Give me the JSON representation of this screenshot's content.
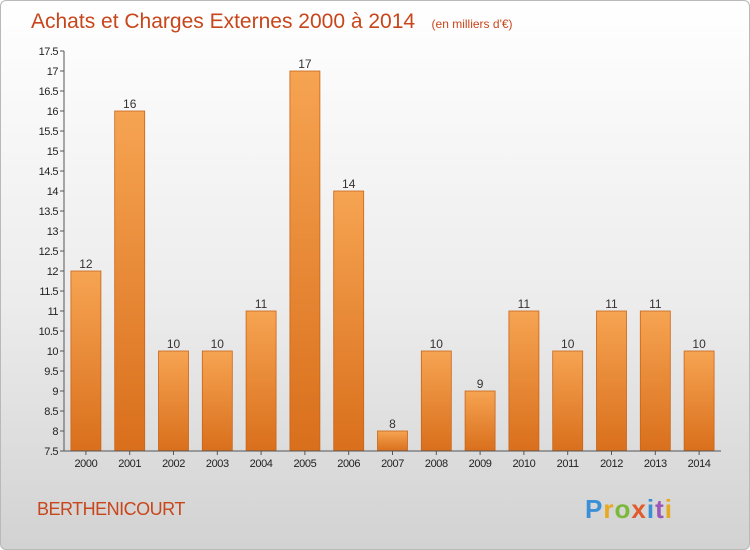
{
  "chart_data": {
    "type": "bar",
    "title": "Achats et Charges Externes 2000 à 2014",
    "subtitle": "(en milliers d'€)",
    "categories": [
      "2000",
      "2001",
      "2002",
      "2003",
      "2004",
      "2005",
      "2006",
      "2007",
      "2008",
      "2009",
      "2010",
      "2011",
      "2012",
      "2013",
      "2014"
    ],
    "values": [
      12,
      16,
      10,
      10,
      11,
      17,
      14,
      8,
      10,
      9,
      11,
      10,
      11,
      11,
      10
    ],
    "value_labels": [
      "12",
      "16",
      "10",
      "10",
      "11",
      "17",
      "14",
      "8",
      "10",
      "9",
      "11",
      "10",
      "11",
      "11",
      "10"
    ],
    "yticks": [
      "7.5",
      "8",
      "8.5",
      "9",
      "9.5",
      "10",
      "10.5",
      "11",
      "11.5",
      "12",
      "12.5",
      "13",
      "13.5",
      "14",
      "14.5",
      "15",
      "15.5",
      "16",
      "16.5",
      "17",
      "17.5"
    ],
    "ylim": [
      7.5,
      17.5
    ],
    "grid": false,
    "bar_color_top": "#f6a452",
    "bar_color_bottom": "#d96f1c"
  },
  "footer": {
    "commune": "BERTHENICOURT",
    "logo": "Proxiti"
  },
  "colors": {
    "title": "#c8461b",
    "logo": [
      "#3a8fd6",
      "#e8a820",
      "#7cb83a",
      "#e05a2a",
      "#3a8fd6",
      "#9a56b8",
      "#e8a820"
    ]
  }
}
